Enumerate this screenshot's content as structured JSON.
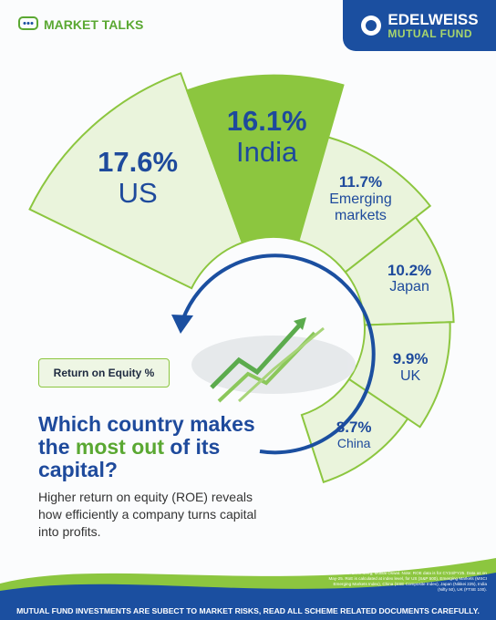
{
  "header": {
    "brand": "MARKET TALKS",
    "logo_line1": "EDELWEISS",
    "logo_line2": "MUTUAL FUND"
  },
  "chart_data": {
    "type": "polar-bar",
    "label": "Return on Equity %",
    "categories": [
      "US",
      "India",
      "Emerging markets",
      "Japan",
      "UK",
      "China"
    ],
    "values": [
      17.6,
      16.1,
      11.7,
      10.2,
      9.9,
      8.7
    ],
    "value_labels": [
      "17.6%",
      "16.1%",
      "11.7%",
      "10.2%",
      "9.9%",
      "8.7%"
    ],
    "colors": [
      "#eaf4dc",
      "#8cc63f",
      "#eaf4dc",
      "#eaf4dc",
      "#eaf4dc",
      "#eaf4dc"
    ],
    "edge_color": "#8cc63f"
  },
  "headline": {
    "lead": "Which country makes the ",
    "highlight": "most out",
    "tail": " of its capital?"
  },
  "subtitle": "Higher return on equity (ROE) reveals how efficiently a company turns capital into profits.",
  "source": "Source: Bloomberg, Motilal Oswal. Note: ROE data is for CY24/FY25. Data as on May-25. RoE is calculated at index level, for US (S&P 500), Emerging Markets (MSCI Emerging Markets Index), China (SSE Composite Index), Japan (Nikkei 225), India (Nifty 50), UK (FTSE 100).",
  "footer": "MUTUAL FUND INVESTMENTS ARE SUBECT TO MARKET RISKS, READ ALL SCHEME RELATED DOCUMENTS CAREFULLY."
}
